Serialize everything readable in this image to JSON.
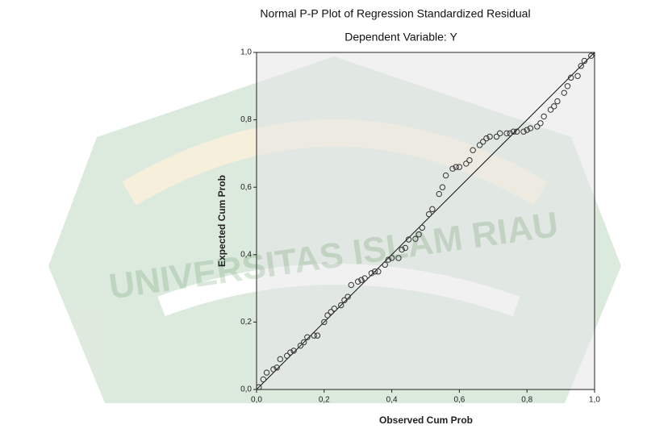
{
  "chart_data": {
    "type": "scatter",
    "title": "Normal P-P Plot of Regression Standardized Residual",
    "subtitle": "Dependent Variable: Y",
    "x_label": "Observed Cum Prob",
    "y_label": "Expected Cum Prob",
    "watermark": "UNIVERSITAS ISLAM RIAU",
    "xlim": [
      0,
      1
    ],
    "ylim": [
      0,
      1
    ],
    "xticks": [
      {
        "value": 0,
        "label": "0,0"
      },
      {
        "value": 0.2,
        "label": "0,2"
      },
      {
        "value": 0.4,
        "label": "0,4"
      },
      {
        "value": 0.6,
        "label": "0,6"
      },
      {
        "value": 0.8,
        "label": "0,8"
      },
      {
        "value": 1,
        "label": "1,0"
      }
    ],
    "yticks": [
      {
        "value": 0,
        "label": "0,0"
      },
      {
        "value": 0.2,
        "label": "0,2"
      },
      {
        "value": 0.4,
        "label": "0,4"
      },
      {
        "value": 0.6,
        "label": "0,6"
      },
      {
        "value": 0.8,
        "label": "0,8"
      },
      {
        "value": 1,
        "label": "1,0"
      }
    ],
    "reference_line": true,
    "series": [
      {
        "color": "#333333",
        "x": [
          0.007,
          0.02,
          0.03,
          0.05,
          0.06,
          0.07,
          0.09,
          0.1,
          0.11,
          0.13,
          0.14,
          0.15,
          0.17,
          0.18,
          0.2,
          0.21,
          0.22,
          0.23,
          0.25,
          0.26,
          0.27,
          0.28,
          0.3,
          0.31,
          0.32,
          0.34,
          0.35,
          0.36,
          0.38,
          0.39,
          0.4,
          0.42,
          0.43,
          0.44,
          0.45,
          0.47,
          0.48,
          0.49,
          0.51,
          0.52,
          0.54,
          0.55,
          0.56,
          0.58,
          0.59,
          0.6,
          0.62,
          0.63,
          0.64,
          0.66,
          0.67,
          0.68,
          0.69,
          0.71,
          0.72,
          0.74,
          0.75,
          0.76,
          0.77,
          0.79,
          0.8,
          0.81,
          0.83,
          0.84,
          0.85,
          0.87,
          0.88,
          0.89,
          0.91,
          0.92,
          0.93,
          0.95,
          0.96,
          0.97,
          0.99
        ],
        "y": [
          0.007,
          0.03,
          0.05,
          0.06,
          0.065,
          0.09,
          0.1,
          0.11,
          0.115,
          0.13,
          0.14,
          0.155,
          0.16,
          0.16,
          0.2,
          0.22,
          0.23,
          0.24,
          0.25,
          0.265,
          0.275,
          0.31,
          0.32,
          0.325,
          0.33,
          0.345,
          0.35,
          0.35,
          0.37,
          0.385,
          0.39,
          0.39,
          0.415,
          0.42,
          0.445,
          0.447,
          0.46,
          0.48,
          0.52,
          0.535,
          0.58,
          0.6,
          0.635,
          0.655,
          0.66,
          0.66,
          0.67,
          0.68,
          0.71,
          0.725,
          0.735,
          0.745,
          0.75,
          0.75,
          0.76,
          0.76,
          0.76,
          0.765,
          0.765,
          0.765,
          0.77,
          0.775,
          0.78,
          0.79,
          0.81,
          0.83,
          0.84,
          0.855,
          0.88,
          0.9,
          0.925,
          0.93,
          0.96,
          0.975,
          0.99
        ]
      }
    ]
  }
}
